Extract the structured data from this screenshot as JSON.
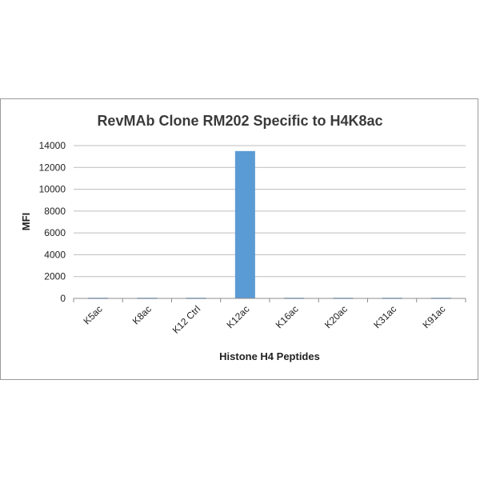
{
  "chart_data": {
    "type": "bar",
    "title": "RevMAb Clone RM202 Specific to H4K8ac",
    "xlabel": "Histone H4 Peptides",
    "ylabel": "MFI",
    "categories": [
      "K5ac",
      "K8ac",
      "K12 Ctrl",
      "K12ac",
      "K16ac",
      "K20ac",
      "K31ac",
      "K91ac"
    ],
    "values": [
      60,
      60,
      60,
      13500,
      60,
      60,
      60,
      60
    ],
    "ylim": [
      0,
      14000
    ],
    "yticks": [
      0,
      2000,
      4000,
      6000,
      8000,
      10000,
      12000,
      14000
    ],
    "grid": true,
    "legend": "none",
    "bar_color": "#5b9bd5"
  }
}
